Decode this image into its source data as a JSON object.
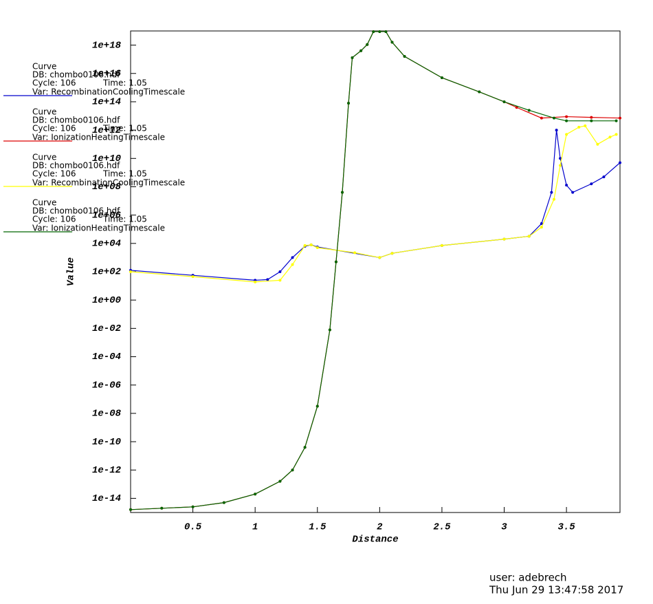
{
  "chart_data": {
    "type": "line",
    "xlabel": "Distance",
    "ylabel": "Value",
    "xlim": [
      0,
      3.93
    ],
    "xticks": [
      0.5,
      1.0,
      1.5,
      2.0,
      2.5,
      3.0,
      3.5
    ],
    "ylim": [
      1e-15,
      1e+19
    ],
    "yscale": "log",
    "yticks": [
      {
        "value": 1e-14,
        "label": "1e-14"
      },
      {
        "value": 1e-12,
        "label": "1e-12"
      },
      {
        "value": 1e-10,
        "label": "1e-10"
      },
      {
        "value": 1e-08,
        "label": "1e-08"
      },
      {
        "value": 1e-06,
        "label": "1e-06"
      },
      {
        "value": 0.0001,
        "label": "1e-04"
      },
      {
        "value": 0.01,
        "label": "1e-02"
      },
      {
        "value": 1,
        "label": "1e+00"
      },
      {
        "value": 100.0,
        "label": "1e+02"
      },
      {
        "value": 10000.0,
        "label": "1e+04"
      },
      {
        "value": 1000000.0,
        "label": "1e+06"
      },
      {
        "value": 100000000.0,
        "label": "1e+08"
      },
      {
        "value": 10000000000.0,
        "label": "1e+10"
      },
      {
        "value": 1000000000000.0,
        "label": "1e+12"
      },
      {
        "value": 100000000000000.0,
        "label": "1e+14"
      },
      {
        "value": 1e+16,
        "label": "1e+16"
      },
      {
        "value": 1e+18,
        "label": "1e+18"
      }
    ],
    "grid": false,
    "legend_header": "Curve",
    "series": [
      {
        "name": "Var: RecombinationCoolingTimescale",
        "db": "DB: chombo0106.hdf",
        "cycle": "Cycle: 106",
        "time": "Time: 1.05",
        "color": "#0000cc",
        "x": [
          0,
          0.5,
          1.0,
          1.1,
          1.2,
          1.3,
          1.4,
          1.45,
          1.5,
          2.0,
          2.1,
          2.5,
          3.0,
          3.2,
          3.3,
          3.38,
          3.42,
          3.45,
          3.5,
          3.55,
          3.7,
          3.8,
          3.93
        ],
        "values": [
          126,
          56,
          25,
          28,
          100,
          1000,
          6300,
          7900,
          5600,
          1000,
          2000,
          7100,
          20000,
          32000,
          250000,
          40000000.0,
          1000000000000.0,
          10000000000.0,
          130000000.0,
          40000000.0,
          160000000.0,
          500000000.0,
          5000000000.0
        ]
      },
      {
        "name": "Var: IonizationHeatingTimescale",
        "db": "DB: chombo0106.hdf",
        "cycle": "Cycle: 106",
        "time": "Time: 1.05",
        "color": "#dd0000",
        "x": [
          0,
          0.25,
          0.5,
          0.75,
          1.0,
          1.2,
          1.3,
          1.4,
          1.5,
          1.6,
          1.65,
          1.7,
          1.75,
          1.78,
          1.85,
          1.9,
          1.95,
          2.0,
          2.05,
          2.1,
          2.2,
          2.5,
          2.8,
          3.0,
          3.1,
          3.3,
          3.5,
          3.7,
          3.93
        ],
        "values": [
          1.6e-15,
          2e-15,
          2.5e-15,
          5e-15,
          2e-14,
          1.6e-13,
          1e-12,
          4e-11,
          3.2e-08,
          0.0079,
          500,
          40000000.0,
          79000000000000.0,
          1.3e+17,
          4e+17,
          1.1e+18,
          9e+18,
          9e+18,
          9e+18,
          1.6e+18,
          1.6e+17,
          5000000000000000.0,
          500000000000000.0,
          100000000000000.0,
          40000000000000.0,
          7100000000000.0,
          8900000000000.0,
          7900000000000.0,
          7100000000000.0
        ]
      },
      {
        "name": "Var: RecombinationCoolingTimescale",
        "db": "DB: chombo0106.hdf",
        "cycle": "Cycle: 106",
        "time": "Time: 1.05",
        "color": "#ffff00",
        "x": [
          0,
          0.5,
          1.0,
          1.2,
          1.3,
          1.4,
          1.45,
          1.5,
          1.8,
          2.0,
          2.1,
          2.5,
          3.0,
          3.2,
          3.3,
          3.4,
          3.45,
          3.5,
          3.6,
          3.65,
          3.75,
          3.85,
          3.9
        ],
        "values": [
          100,
          45,
          19,
          25,
          320,
          7100,
          7900,
          5000,
          2200,
          1000,
          2000,
          7100,
          20000,
          32000,
          140000,
          13000000.0,
          3200000000.0,
          500000000000.0,
          1600000000000.0,
          2000000000000.0,
          100000000000.0,
          320000000000.0,
          500000000000.0
        ]
      },
      {
        "name": "Var: IonizationHeatingTimescale",
        "db": "DB: chombo0106.hdf",
        "cycle": "Cycle: 106",
        "time": "Time: 1.05",
        "color": "#006600",
        "x": [
          0,
          0.25,
          0.5,
          0.75,
          1.0,
          1.2,
          1.3,
          1.4,
          1.5,
          1.6,
          1.65,
          1.7,
          1.75,
          1.78,
          1.85,
          1.9,
          1.95,
          2.0,
          2.05,
          2.1,
          2.2,
          2.5,
          2.8,
          3.0,
          3.2,
          3.4,
          3.5,
          3.7,
          3.9
        ],
        "values": [
          1.6e-15,
          2e-15,
          2.5e-15,
          5e-15,
          2e-14,
          1.6e-13,
          1e-12,
          4e-11,
          3.2e-08,
          0.0079,
          500,
          40000000.0,
          79000000000000.0,
          1.3e+17,
          4e+17,
          1.1e+18,
          9e+18,
          9e+18,
          9e+18,
          1.6e+18,
          1.6e+17,
          5000000000000000.0,
          500000000000000.0,
          100000000000000.0,
          25000000000000.0,
          7100000000000.0,
          4500000000000.0,
          4500000000000.0,
          4500000000000.0
        ]
      }
    ]
  },
  "footer": {
    "user": "user: adebrech",
    "date": "Thu Jun 29 13:47:58 2017"
  }
}
